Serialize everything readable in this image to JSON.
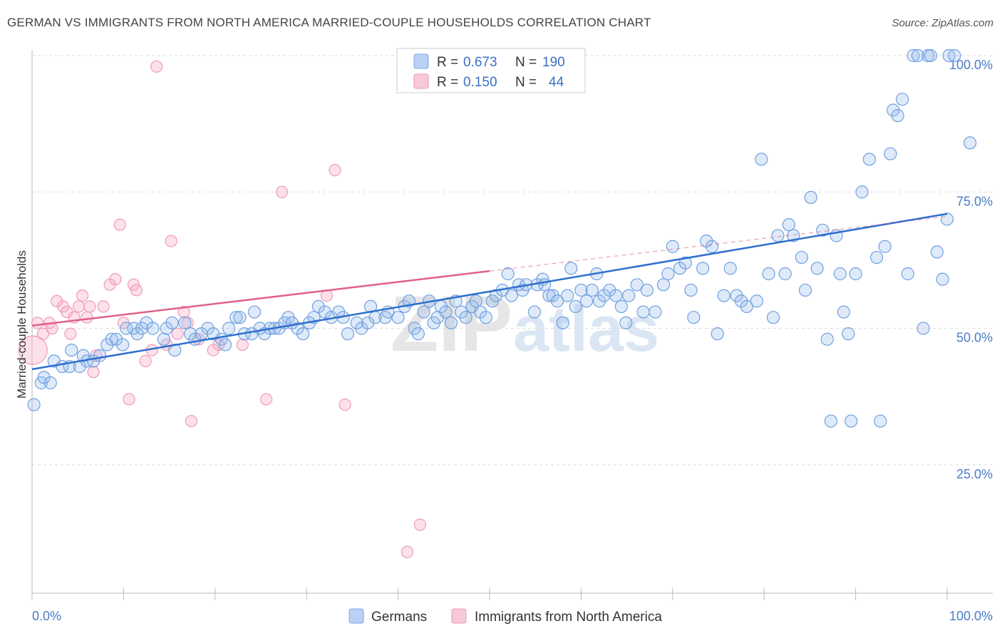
{
  "title": "GERMAN VS IMMIGRANTS FROM NORTH AMERICA MARRIED-COUPLE HOUSEHOLDS CORRELATION CHART",
  "source": "Source: ZipAtlas.com",
  "watermark": {
    "zip": "ZIP",
    "atlas": "atlas"
  },
  "colors": {
    "blue": "#6fa0e0",
    "blue_line": "#2e6fce",
    "pink": "#f09ab8",
    "pink_line": "#e0608a"
  },
  "legend": {
    "rows": [
      {
        "r_label": "R =",
        "r_value": "0.673",
        "n_label": "N =",
        "n_value": "190"
      },
      {
        "r_label": "R =",
        "r_value": "0.150",
        "n_label": "N =",
        "n_value": "44"
      }
    ]
  },
  "chart_data": {
    "type": "scatter",
    "title": "GERMAN VS IMMIGRANTS FROM NORTH AMERICA MARRIED-COUPLE HOUSEHOLDS CORRELATION CHART",
    "xlabel": "",
    "ylabel": "Married-couple Households",
    "xlim": [
      0,
      100
    ],
    "ylim": [
      0,
      100
    ],
    "x_tick_labels": [
      "0.0%",
      "100.0%"
    ],
    "y_tick_labels": [
      "25.0%",
      "50.0%",
      "75.0%",
      "100.0%"
    ],
    "y_ticks": [
      25,
      50,
      75,
      100
    ],
    "grid": true,
    "legend_position": "top-center",
    "series": [
      {
        "name": "Germans",
        "R": 0.673,
        "N": 190,
        "trend": {
          "x": [
            0,
            100
          ],
          "y": [
            42.5,
            71
          ]
        },
        "points": [
          [
            0.2,
            36
          ],
          [
            1,
            40
          ],
          [
            1.3,
            41
          ],
          [
            2,
            40
          ],
          [
            2.4,
            44
          ],
          [
            3.3,
            43
          ],
          [
            4.1,
            43
          ],
          [
            4.3,
            46
          ],
          [
            5.2,
            43
          ],
          [
            5.6,
            45
          ],
          [
            6,
            44
          ],
          [
            6.7,
            44
          ],
          [
            7.4,
            45
          ],
          [
            8.2,
            47
          ],
          [
            8.7,
            48
          ],
          [
            9.2,
            48
          ],
          [
            9.9,
            47
          ],
          [
            10.3,
            50
          ],
          [
            11.1,
            50
          ],
          [
            11.5,
            49
          ],
          [
            12,
            50
          ],
          [
            12.5,
            51
          ],
          [
            13.2,
            50
          ],
          [
            14.4,
            48
          ],
          [
            14.7,
            50
          ],
          [
            15.3,
            51
          ],
          [
            15.6,
            46
          ],
          [
            16.7,
            51
          ],
          [
            17.3,
            49
          ],
          [
            17.8,
            48
          ],
          [
            18.5,
            49
          ],
          [
            19.2,
            50
          ],
          [
            19.8,
            49
          ],
          [
            20.7,
            48
          ],
          [
            21.1,
            47
          ],
          [
            21.5,
            50
          ],
          [
            22.3,
            52
          ],
          [
            22.7,
            52
          ],
          [
            23.2,
            49
          ],
          [
            24,
            49
          ],
          [
            24.3,
            53
          ],
          [
            24.9,
            50
          ],
          [
            25.4,
            49
          ],
          [
            26,
            50
          ],
          [
            26.5,
            50
          ],
          [
            27,
            50
          ],
          [
            27.6,
            51
          ],
          [
            28,
            52
          ],
          [
            28.4,
            51
          ],
          [
            29,
            50
          ],
          [
            29.6,
            49
          ],
          [
            30.3,
            51
          ],
          [
            30.8,
            52
          ],
          [
            31.3,
            54
          ],
          [
            32,
            53
          ],
          [
            32.7,
            52
          ],
          [
            33.5,
            53
          ],
          [
            34,
            52
          ],
          [
            34.5,
            49
          ],
          [
            35.5,
            51
          ],
          [
            36,
            50
          ],
          [
            36.7,
            51
          ],
          [
            37,
            54
          ],
          [
            37.5,
            52
          ],
          [
            38.6,
            52
          ],
          [
            38.9,
            53
          ],
          [
            40,
            52
          ],
          [
            40.7,
            54
          ],
          [
            41.2,
            55
          ],
          [
            41.8,
            50
          ],
          [
            42.2,
            49
          ],
          [
            42.8,
            53
          ],
          [
            43.4,
            55
          ],
          [
            43.9,
            51
          ],
          [
            44.3,
            52
          ],
          [
            44.7,
            54
          ],
          [
            45.2,
            53
          ],
          [
            45.8,
            51
          ],
          [
            46.3,
            55
          ],
          [
            46.9,
            53
          ],
          [
            47.4,
            52
          ],
          [
            48.1,
            54
          ],
          [
            48.5,
            55
          ],
          [
            49,
            53
          ],
          [
            49.6,
            52
          ],
          [
            50.3,
            55
          ],
          [
            50.7,
            56
          ],
          [
            51.4,
            57
          ],
          [
            52,
            60
          ],
          [
            52.4,
            56
          ],
          [
            53.2,
            58
          ],
          [
            53.6,
            57
          ],
          [
            54,
            58
          ],
          [
            54.9,
            53
          ],
          [
            55.2,
            58
          ],
          [
            55.8,
            59
          ],
          [
            56,
            58
          ],
          [
            56.5,
            56
          ],
          [
            56.9,
            56
          ],
          [
            57.4,
            55
          ],
          [
            58,
            51
          ],
          [
            58.5,
            56
          ],
          [
            58.9,
            61
          ],
          [
            59.4,
            54
          ],
          [
            60,
            57
          ],
          [
            60.6,
            55
          ],
          [
            61.2,
            57
          ],
          [
            61.7,
            60
          ],
          [
            62,
            55
          ],
          [
            62.5,
            56
          ],
          [
            63.1,
            57
          ],
          [
            63.8,
            56
          ],
          [
            64.4,
            54
          ],
          [
            64.9,
            51
          ],
          [
            65.2,
            56
          ],
          [
            66.1,
            58
          ],
          [
            66.8,
            53
          ],
          [
            67.2,
            57
          ],
          [
            68.1,
            53
          ],
          [
            69,
            58
          ],
          [
            69.5,
            60
          ],
          [
            70,
            65
          ],
          [
            70.8,
            61
          ],
          [
            71.4,
            62
          ],
          [
            72,
            57
          ],
          [
            72.3,
            52
          ],
          [
            73.3,
            61
          ],
          [
            73.7,
            66
          ],
          [
            74.3,
            65
          ],
          [
            74.9,
            49
          ],
          [
            75.6,
            56
          ],
          [
            76.3,
            61
          ],
          [
            77,
            56
          ],
          [
            77.5,
            55
          ],
          [
            78.1,
            54
          ],
          [
            79.2,
            55
          ],
          [
            79.7,
            81
          ],
          [
            80.5,
            60
          ],
          [
            81,
            52
          ],
          [
            81.5,
            67
          ],
          [
            82.3,
            60
          ],
          [
            82.7,
            69
          ],
          [
            83.2,
            67
          ],
          [
            84.1,
            63
          ],
          [
            84.5,
            57
          ],
          [
            85.1,
            74
          ],
          [
            85.8,
            61
          ],
          [
            86.4,
            68
          ],
          [
            86.9,
            48
          ],
          [
            87.3,
            33
          ],
          [
            87.9,
            67
          ],
          [
            88.3,
            60
          ],
          [
            88.7,
            53
          ],
          [
            89.2,
            49
          ],
          [
            89.5,
            33
          ],
          [
            90,
            60
          ],
          [
            90.7,
            75
          ],
          [
            91.5,
            81
          ],
          [
            92.3,
            63
          ],
          [
            92.7,
            33
          ],
          [
            93.2,
            65
          ],
          [
            93.8,
            82
          ],
          [
            94.1,
            90
          ],
          [
            94.6,
            89
          ],
          [
            95.1,
            92
          ],
          [
            95.7,
            60
          ],
          [
            96.3,
            100
          ],
          [
            96.8,
            100
          ],
          [
            97.4,
            50
          ],
          [
            97.9,
            100
          ],
          [
            98.2,
            100
          ],
          [
            98.9,
            64
          ],
          [
            99.5,
            59
          ],
          [
            100,
            70
          ],
          [
            100.2,
            100
          ],
          [
            100.8,
            100
          ],
          [
            102.5,
            84
          ]
        ]
      },
      {
        "name": "Immigrants from North America",
        "R": 0.15,
        "N": 44,
        "trend": {
          "x": [
            0,
            50
          ],
          "y": [
            50.5,
            60.5
          ]
        },
        "trend_extension": {
          "x": [
            50,
            100
          ],
          "y": [
            60.5,
            70.5
          ]
        },
        "points": [
          [
            0.1,
            46
          ],
          [
            0.6,
            51
          ],
          [
            1.2,
            49
          ],
          [
            1.9,
            51
          ],
          [
            2.2,
            50
          ],
          [
            2.7,
            55
          ],
          [
            3.4,
            54
          ],
          [
            3.8,
            53
          ],
          [
            4.2,
            49
          ],
          [
            4.6,
            52
          ],
          [
            5.1,
            54
          ],
          [
            5.5,
            56
          ],
          [
            6,
            52
          ],
          [
            6.3,
            54
          ],
          [
            6.7,
            42
          ],
          [
            7,
            45
          ],
          [
            7.8,
            54
          ],
          [
            8.5,
            58
          ],
          [
            9.1,
            59
          ],
          [
            9.6,
            69
          ],
          [
            10,
            51
          ],
          [
            10.6,
            37
          ],
          [
            11.1,
            58
          ],
          [
            11.4,
            57
          ],
          [
            12.4,
            44
          ],
          [
            13.1,
            46
          ],
          [
            13.6,
            98
          ],
          [
            14.7,
            47
          ],
          [
            15.2,
            66
          ],
          [
            15.9,
            49
          ],
          [
            16.6,
            53
          ],
          [
            17,
            51
          ],
          [
            17.4,
            33
          ],
          [
            18.2,
            48
          ],
          [
            19.8,
            46
          ],
          [
            20.4,
            47
          ],
          [
            23,
            47
          ],
          [
            25.6,
            37
          ],
          [
            27.3,
            75
          ],
          [
            32.2,
            56
          ],
          [
            33.1,
            79
          ],
          [
            34.2,
            36
          ],
          [
            41,
            9
          ],
          [
            42.4,
            14
          ]
        ]
      }
    ]
  },
  "bottom_legend": {
    "items": [
      "Germans",
      "Immigrants from North America"
    ]
  }
}
